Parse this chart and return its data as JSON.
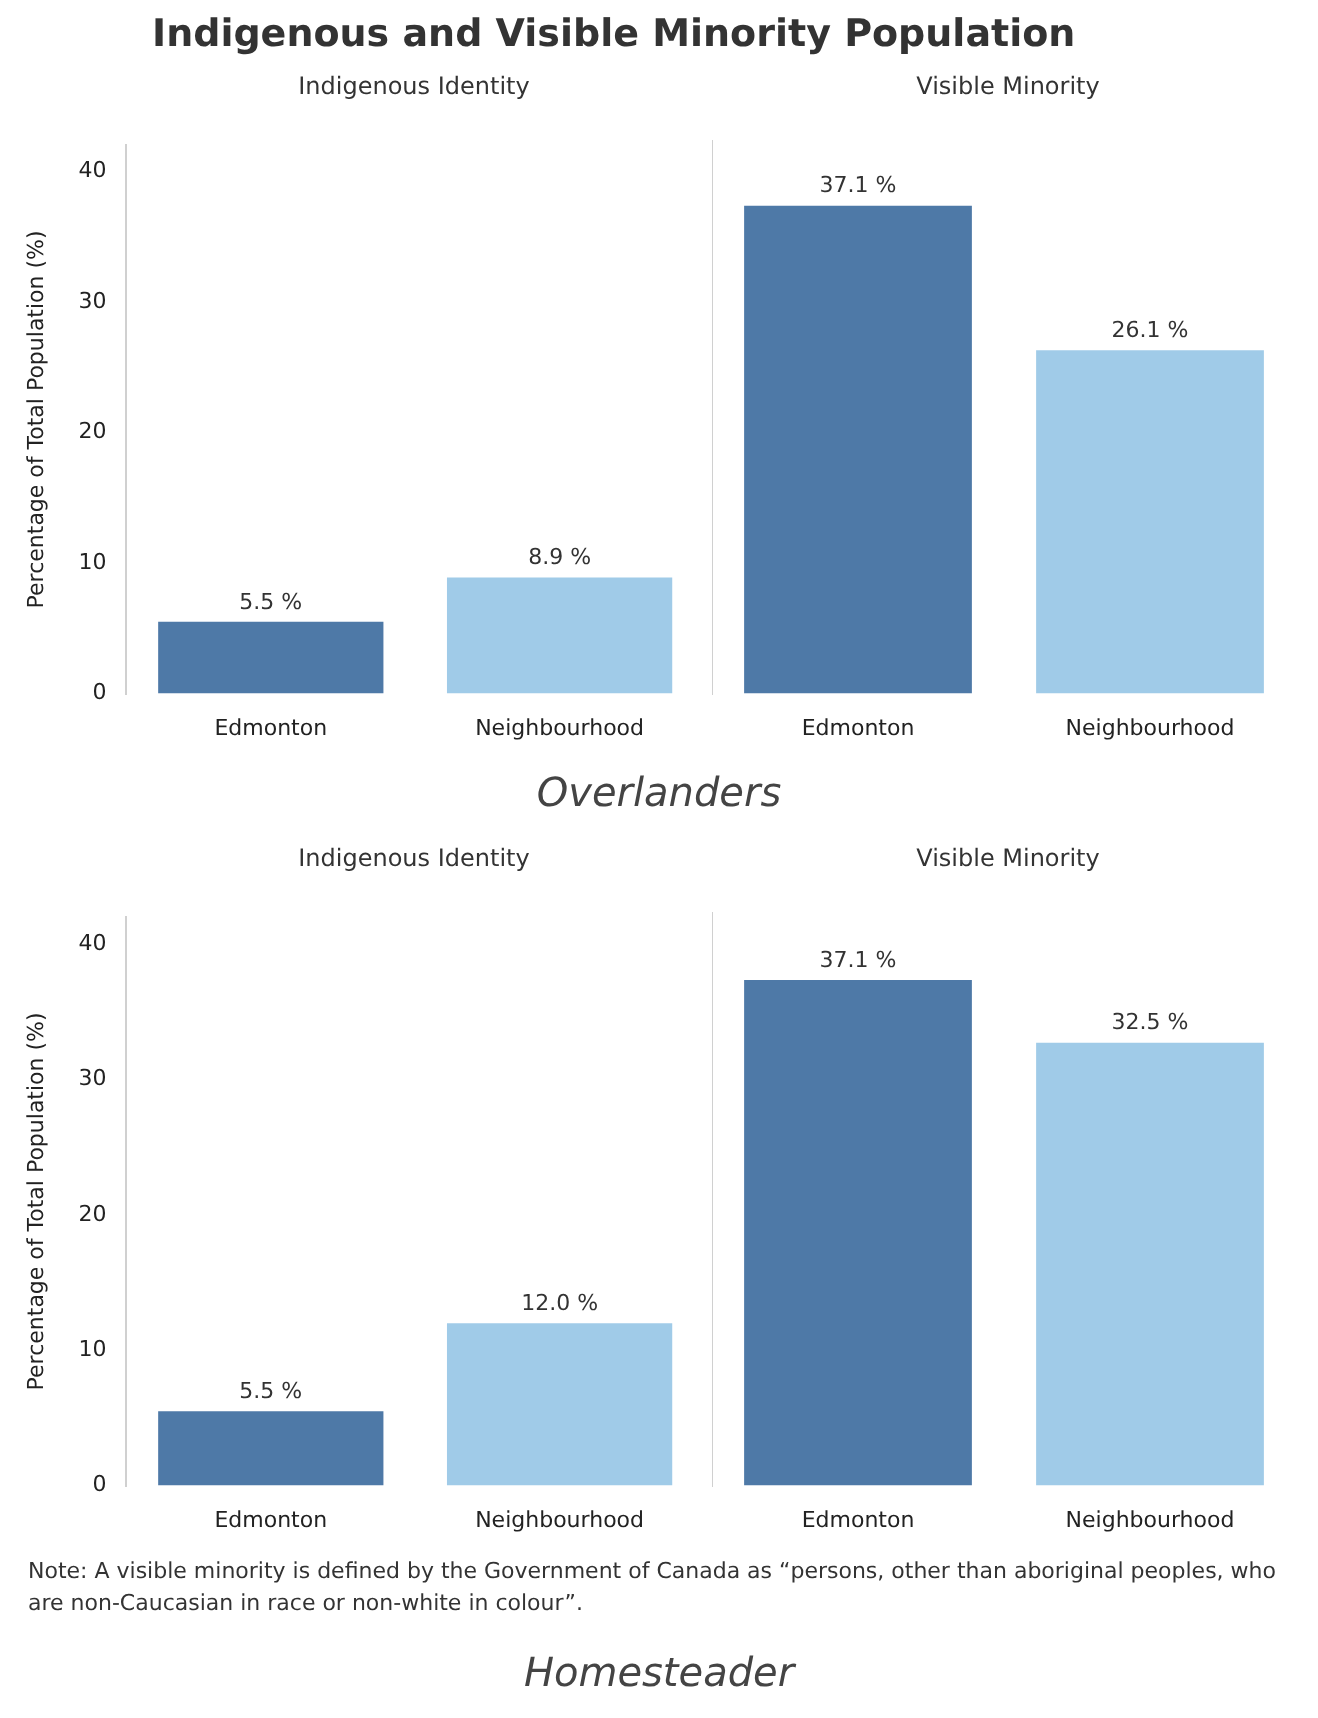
{
  "chart_data": [
    {
      "type": "bar",
      "title": "Indigenous and Visible Minority Population",
      "subtitle": "Indigenous Identity",
      "ylabel": "Percentage of Total Population (%)",
      "categories": [
        "Edmonton",
        "Neighbourhood"
      ],
      "values": [
        5.5,
        8.9
      ],
      "colors": [
        "#4e79a7",
        "#a0cbe8"
      ],
      "value_labels": [
        "5.5 %",
        "8.9 %"
      ],
      "ylim": [
        0,
        42
      ],
      "yticks": [
        0,
        10,
        20,
        30,
        40
      ],
      "grid": false
    },
    {
      "type": "bar",
      "subtitle": "Visible Minority",
      "categories": [
        "Edmonton",
        "Neighbourhood"
      ],
      "values": [
        37.1,
        26.1
      ],
      "colors": [
        "#4e79a7",
        "#a0cbe8"
      ],
      "value_labels": [
        "37.1 %",
        "26.1 %"
      ],
      "ylim": [
        0,
        42
      ],
      "yticks": [
        0,
        10,
        20,
        30,
        40
      ],
      "tick_labels": "x",
      "grid": false,
      "annotations": [
        "Overlanders"
      ]
    },
    {
      "type": "bar",
      "subtitle": "Indigenous Identity",
      "ylabel": "Percentage of Total Population (%)",
      "categories": [
        "Edmonton",
        "Neighbourhood"
      ],
      "values": [
        5.5,
        12.0
      ],
      "colors": [
        "#4e79a7",
        "#a0cbe8"
      ],
      "value_labels": [
        "5.5 %",
        "12.0 %"
      ],
      "ylim": [
        0,
        42
      ],
      "yticks": [
        0,
        10,
        20,
        30,
        40
      ],
      "grid": false
    },
    {
      "type": "bar",
      "subtitle": "Visible Minority",
      "categories": [
        "Edmonton",
        "Neighbourhood"
      ],
      "values": [
        37.1,
        32.5
      ],
      "colors": [
        "#4e79a7",
        "#a0cbe8"
      ],
      "value_labels": [
        "37.1 %",
        "32.5 %"
      ],
      "ylim": [
        0,
        42
      ],
      "yticks": [
        0,
        10,
        20,
        30,
        40
      ],
      "tick_labels": "x",
      "grid": false,
      "annotations": [
        "Note: A visible minority is defined by the Government of Canada as “persons, other than aboriginal peoples, who are non-Caucasian in race or non-white in colour”.",
        "Homesteader"
      ]
    }
  ]
}
